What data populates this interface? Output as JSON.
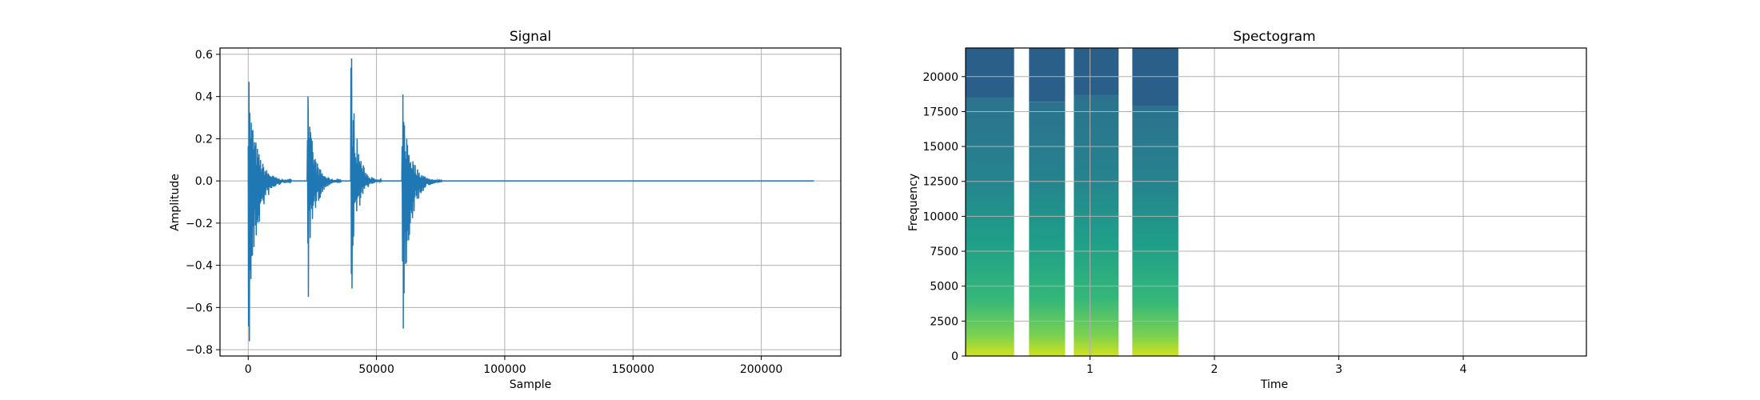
{
  "colors": {
    "signal_line": "#1f77b4",
    "grid": "#b0b0b0",
    "spec_bg": "#2a5f8a",
    "spec_mid": "#22a785",
    "spec_low": "#b5de2b"
  },
  "chart_data": [
    {
      "type": "line",
      "title": "Signal",
      "xlabel": "Sample",
      "ylabel": "Amplitude",
      "xlim": [
        -11000,
        231000
      ],
      "ylim": [
        -0.83,
        0.63
      ],
      "grid": true,
      "xticks": [
        0,
        50000,
        100000,
        150000,
        200000
      ],
      "xtick_labels": [
        "0",
        "50000",
        "100000",
        "150000",
        "200000"
      ],
      "yticks": [
        -0.8,
        -0.6,
        -0.4,
        -0.2,
        0.0,
        0.2,
        0.4,
        0.6
      ],
      "ytick_labels": [
        "−0.8",
        "−0.6",
        "−0.4",
        "−0.2",
        "0.0",
        "0.2",
        "0.4",
        "0.6"
      ],
      "series": [
        {
          "color": "#1f77b4",
          "bursts": [
            {
              "onset": 0,
              "peak_pos": 0.47,
              "peak_neg": -0.76,
              "decay_samples": 14000
            },
            {
              "onset": 23000,
              "peak_pos": 0.4,
              "peak_neg": -0.55,
              "decay_samples": 11000
            },
            {
              "onset": 40000,
              "peak_pos": 0.58,
              "peak_neg": -0.51,
              "decay_samples": 10000
            },
            {
              "onset": 60000,
              "peak_pos": 0.41,
              "peak_neg": -0.7,
              "decay_samples": 13000
            }
          ],
          "x_end": 220500
        }
      ]
    },
    {
      "type": "heatmap",
      "title": "Spectogram",
      "xlabel": "Time",
      "ylabel": "Frequency",
      "xlim": [
        0,
        4.99
      ],
      "ylim": [
        0,
        22050
      ],
      "grid": true,
      "xticks": [
        1,
        2,
        3,
        4
      ],
      "xtick_labels": [
        "1",
        "2",
        "3",
        "4"
      ],
      "yticks": [
        0,
        2500,
        5000,
        7500,
        10000,
        12500,
        15000,
        17500,
        20000
      ],
      "ytick_labels": [
        "0",
        "2500",
        "5000",
        "7500",
        "10000",
        "12500",
        "15000",
        "17500",
        "20000"
      ],
      "segments": [
        {
          "t_start": 0.0,
          "t_end": 0.39,
          "energy_cutoff_hz": 18500
        },
        {
          "t_start": 0.51,
          "t_end": 0.8,
          "energy_cutoff_hz": 18200
        },
        {
          "t_start": 0.87,
          "t_end": 1.23,
          "energy_cutoff_hz": 18700
        },
        {
          "t_start": 1.34,
          "t_end": 1.71,
          "energy_cutoff_hz": 17900
        }
      ]
    }
  ]
}
